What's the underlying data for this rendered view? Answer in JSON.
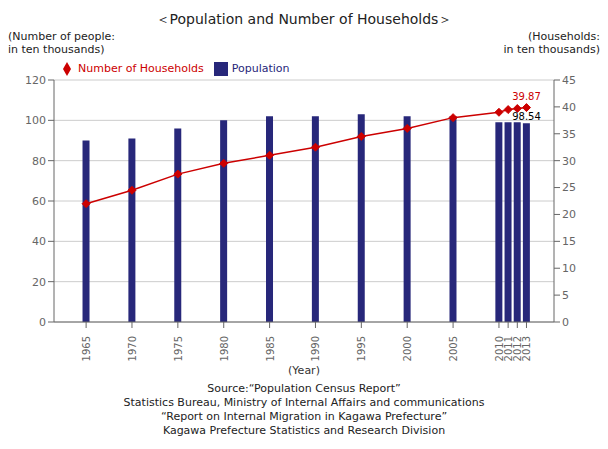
{
  "chart_data": {
    "type": "bar",
    "title": "＜Population and Number of Households＞",
    "xlabel": "(Year)",
    "ylabel": [
      "(Number of people:",
      "in ten thousands)"
    ],
    "y2label": [
      "(Households:",
      "in ten thousands)"
    ],
    "x": [
      1965,
      1970,
      1975,
      1980,
      1985,
      1990,
      1995,
      2000,
      2005,
      2010,
      2011,
      2012,
      2013
    ],
    "xlim": [
      1961.5,
      2016
    ],
    "xticks": [
      1965,
      1970,
      1975,
      1980,
      1985,
      1990,
      1995,
      2000,
      2005,
      2010,
      2011,
      2012,
      2013
    ],
    "ylim": [
      0,
      120
    ],
    "yticks": [
      0,
      20,
      40,
      60,
      80,
      100,
      120
    ],
    "y2lim": [
      0,
      45
    ],
    "y2ticks": [
      0,
      5,
      10,
      15,
      20,
      25,
      30,
      35,
      40,
      45
    ],
    "series": [
      {
        "name": "Population",
        "type": "bar",
        "color": "#27277A",
        "values": [
          90,
          91,
          96,
          100,
          102,
          102,
          103,
          102,
          102,
          99,
          99,
          99,
          98.54
        ]
      },
      {
        "name": "Number of Households",
        "type": "line",
        "color": "#CC0000",
        "marker": "diamond",
        "axis": "y2",
        "values": [
          22,
          24.5,
          27.5,
          29.5,
          31,
          32.5,
          34.5,
          36,
          38,
          39,
          39.5,
          39.7,
          39.87
        ]
      }
    ],
    "annotations": [
      {
        "text": "39.87",
        "series": "Number of Households"
      },
      {
        "text": "98.54",
        "series": "Population"
      }
    ],
    "source": [
      "Source:“Population Census Report”",
      "Statistics Bureau, Ministry of Internal Affairs and communications",
      "“Report on Internal Migration in Kagawa Prefecture”",
      "Kagawa Prefecture Statistics and Research Division"
    ],
    "grid": true,
    "legend": "upper left"
  }
}
